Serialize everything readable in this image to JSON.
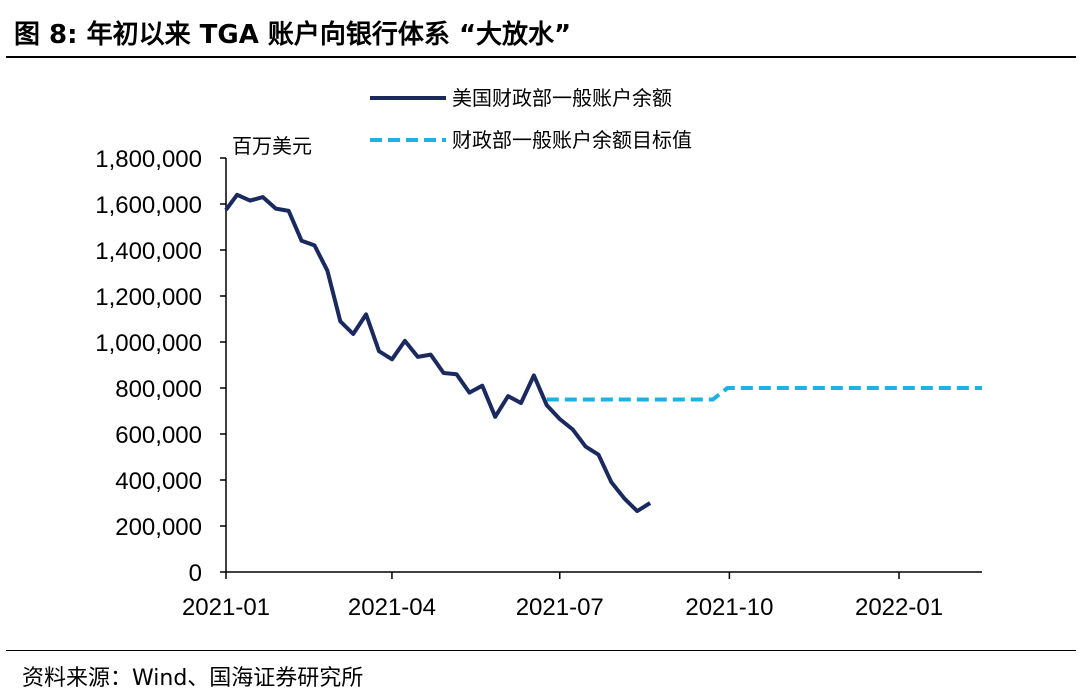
{
  "figure": {
    "title": "图 8:  年初以来 TGA 账户向银行体系 “大放水”",
    "source": "资料来源：Wind、国海证券研究所"
  },
  "chart_data": {
    "type": "line",
    "unit_label": "百万美元",
    "x_axis": {
      "ticks": [
        "2021-01",
        "2021-04",
        "2021-07",
        "2021-10",
        "2022-01"
      ],
      "range": [
        "2021-01-01",
        "2022-02-15"
      ]
    },
    "y_axis": {
      "min": 0,
      "max": 1800000,
      "step": 200000,
      "ticks": [
        "0",
        "200,000",
        "400,000",
        "600,000",
        "800,000",
        "1,000,000",
        "1,200,000",
        "1,400,000",
        "1,600,000",
        "1,800,000"
      ]
    },
    "legend_position": "top-right",
    "series": [
      {
        "name": "美国财政部一般账户余额",
        "color": "#1b2a5e",
        "style": "solid",
        "points": [
          [
            "2021-01-01",
            1575000
          ],
          [
            "2021-01-07",
            1640000
          ],
          [
            "2021-01-14",
            1615000
          ],
          [
            "2021-01-21",
            1630000
          ],
          [
            "2021-01-28",
            1580000
          ],
          [
            "2021-02-04",
            1570000
          ],
          [
            "2021-02-11",
            1440000
          ],
          [
            "2021-02-18",
            1420000
          ],
          [
            "2021-02-25",
            1310000
          ],
          [
            "2021-03-04",
            1090000
          ],
          [
            "2021-03-11",
            1035000
          ],
          [
            "2021-03-18",
            1120000
          ],
          [
            "2021-03-25",
            960000
          ],
          [
            "2021-04-01",
            925000
          ],
          [
            "2021-04-08",
            1005000
          ],
          [
            "2021-04-15",
            935000
          ],
          [
            "2021-04-22",
            945000
          ],
          [
            "2021-04-29",
            865000
          ],
          [
            "2021-05-06",
            860000
          ],
          [
            "2021-05-13",
            780000
          ],
          [
            "2021-05-20",
            810000
          ],
          [
            "2021-05-27",
            675000
          ],
          [
            "2021-06-03",
            765000
          ],
          [
            "2021-06-10",
            735000
          ],
          [
            "2021-06-17",
            855000
          ],
          [
            "2021-06-24",
            725000
          ],
          [
            "2021-07-01",
            665000
          ],
          [
            "2021-07-08",
            620000
          ],
          [
            "2021-07-15",
            545000
          ],
          [
            "2021-07-22",
            510000
          ],
          [
            "2021-07-29",
            390000
          ],
          [
            "2021-08-05",
            320000
          ],
          [
            "2021-08-12",
            265000
          ],
          [
            "2021-08-19",
            300000
          ]
        ]
      },
      {
        "name": "财政部一般账户余额目标值",
        "color": "#1fb0e6",
        "style": "dashed",
        "points": [
          [
            "2021-06-24",
            750000
          ],
          [
            "2021-09-22",
            750000
          ],
          [
            "2021-09-30",
            800000
          ],
          [
            "2022-02-15",
            800000
          ]
        ]
      }
    ]
  }
}
